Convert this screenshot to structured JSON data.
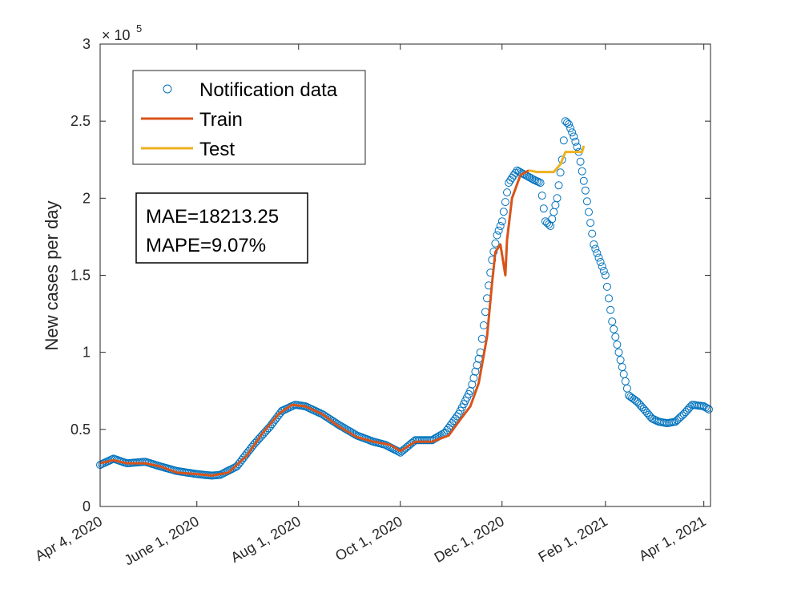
{
  "chart_data": {
    "type": "line",
    "ylabel": "New cases per day",
    "xlabel": "",
    "y_exponent_label": "× 10",
    "y_exponent": "5",
    "ylim": [
      0,
      300000
    ],
    "xlim": [
      "2020-04-04",
      "2021-04-05"
    ],
    "y_ticks": [
      0,
      50000,
      100000,
      150000,
      200000,
      250000,
      300000
    ],
    "y_tick_labels": [
      "0",
      "0.5",
      "1",
      "1.5",
      "2",
      "2.5",
      "3"
    ],
    "x_ticks": [
      "2020-04-04",
      "2020-06-01",
      "2020-08-01",
      "2020-10-01",
      "2020-12-01",
      "2021-02-01",
      "2021-04-01"
    ],
    "x_tick_labels": [
      "Apr 4, 2020",
      "June 1, 2020",
      "Aug 1, 2020",
      "Oct 1, 2020",
      "Dec 1, 2020",
      "Feb 1, 2021",
      "Apr 1, 2021"
    ],
    "grid": false,
    "legend_position": "top-left",
    "colors": {
      "notification": "#0072BD",
      "train": "#D95319",
      "test": "#EDB120"
    },
    "annotation": {
      "mae": "MAE=18213.25",
      "mape": "MAPE=9.07%"
    },
    "series": [
      {
        "name": "Notification data",
        "style": "markers",
        "x": [
          "2020-04-04",
          "2020-04-12",
          "2020-04-20",
          "2020-05-01",
          "2020-05-10",
          "2020-05-20",
          "2020-06-01",
          "2020-06-10",
          "2020-06-15",
          "2020-06-25",
          "2020-07-05",
          "2020-07-15",
          "2020-07-22",
          "2020-07-30",
          "2020-08-05",
          "2020-08-15",
          "2020-08-25",
          "2020-09-05",
          "2020-09-15",
          "2020-09-22",
          "2020-10-01",
          "2020-10-10",
          "2020-10-20",
          "2020-10-28",
          "2020-11-05",
          "2020-11-12",
          "2020-11-18",
          "2020-11-22",
          "2020-11-25",
          "2020-11-28",
          "2020-12-01",
          "2020-12-05",
          "2020-12-10",
          "2020-12-15",
          "2020-12-20",
          "2020-12-24",
          "2020-12-27",
          "2020-12-30",
          "2021-01-03",
          "2021-01-06",
          "2021-01-08",
          "2021-01-10",
          "2021-01-13",
          "2021-01-16",
          "2021-01-20",
          "2021-01-25",
          "2021-02-01",
          "2021-02-05",
          "2021-02-10",
          "2021-02-15",
          "2021-02-20",
          "2021-02-25",
          "2021-03-01",
          "2021-03-05",
          "2021-03-10",
          "2021-03-15",
          "2021-03-20",
          "2021-03-25",
          "2021-04-01",
          "2021-04-04"
        ],
        "y": [
          27000,
          31000,
          28000,
          29000,
          26000,
          23000,
          21000,
          20000,
          20500,
          26000,
          40000,
          52000,
          62000,
          66000,
          65000,
          60000,
          53000,
          46000,
          42000,
          40000,
          35000,
          43000,
          43000,
          48000,
          60000,
          75000,
          100000,
          135000,
          160000,
          176000,
          185000,
          210000,
          218000,
          215000,
          212000,
          210000,
          185000,
          182000,
          200000,
          225000,
          250000,
          248000,
          240000,
          230000,
          205000,
          170000,
          150000,
          120000,
          95000,
          72000,
          68000,
          62000,
          57000,
          55000,
          54000,
          55000,
          60000,
          66000,
          65000,
          63000
        ]
      },
      {
        "name": "Train",
        "style": "line",
        "x": [
          "2020-04-04",
          "2020-04-12",
          "2020-04-20",
          "2020-05-01",
          "2020-05-10",
          "2020-05-20",
          "2020-06-01",
          "2020-06-10",
          "2020-06-20",
          "2020-07-01",
          "2020-07-10",
          "2020-07-20",
          "2020-07-28",
          "2020-08-05",
          "2020-08-15",
          "2020-08-25",
          "2020-09-05",
          "2020-09-15",
          "2020-09-25",
          "2020-10-01",
          "2020-10-10",
          "2020-10-20",
          "2020-10-30",
          "2020-11-05",
          "2020-11-12",
          "2020-11-17",
          "2020-11-22",
          "2020-11-25",
          "2020-11-27",
          "2020-11-30",
          "2020-12-03",
          "2020-12-04",
          "2020-12-07",
          "2020-12-12",
          "2020-12-17"
        ],
        "y": [
          28000,
          30000,
          28000,
          28000,
          26000,
          22000,
          21000,
          20000,
          22000,
          33000,
          47000,
          60000,
          66000,
          65000,
          60000,
          52000,
          45000,
          42000,
          40000,
          36000,
          42000,
          42000,
          46000,
          55000,
          65000,
          80000,
          110000,
          145000,
          165000,
          170000,
          150000,
          173000,
          200000,
          215000,
          218000
        ]
      },
      {
        "name": "Test",
        "style": "line",
        "x": [
          "2020-12-17",
          "2020-12-22",
          "2020-12-27",
          "2021-01-01",
          "2021-01-05",
          "2021-01-08",
          "2021-01-12",
          "2021-01-15",
          "2021-01-18",
          "2021-01-19"
        ],
        "y": [
          218000,
          217000,
          217000,
          217000,
          222000,
          230000,
          230000,
          230000,
          230000,
          234000
        ]
      }
    ]
  }
}
